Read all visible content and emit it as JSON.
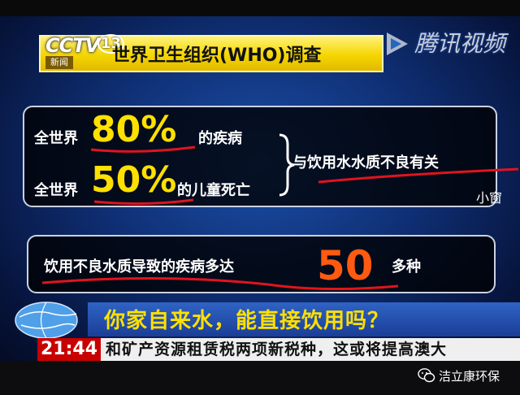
{
  "logo": {
    "brand": "CCTV",
    "channel_number": "13",
    "channel_sub": "新闻"
  },
  "banner": {
    "title": "世界卫生组织(WHO)调查"
  },
  "watermark": {
    "text": "腾讯视频",
    "icon": "tencent-video-play-icon"
  },
  "stats": {
    "row1_prefix": "全世界",
    "row1_value": "80%",
    "row1_suffix": "的疾病",
    "row2_prefix": "全世界",
    "row2_value": "50%",
    "row2_suffix": "的儿童死亡",
    "conclusion": "与饮用水水质不良有关"
  },
  "diseases": {
    "prefix": "饮用不良水质导致的疾病多达",
    "value": "50",
    "suffix": "多种"
  },
  "side_label": "小窗",
  "ticker": {
    "headline": "你家自来水，能直接饮用吗？",
    "time": "21:44",
    "crawl": "和矿产资源租赁税两项新税种，这或将提高澳大"
  },
  "wechat": {
    "account": "洁立康环保",
    "icon": "wechat-icon"
  },
  "colors": {
    "yellow": "#ffe000",
    "orange": "#ff5a10",
    "banner": "#f4d600",
    "red_line": "#e0141e"
  }
}
